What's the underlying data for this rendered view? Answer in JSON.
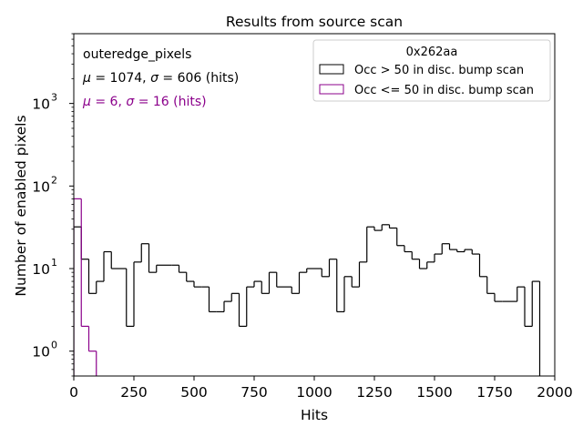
{
  "chart_data": {
    "type": "histogram",
    "title": "Results from source scan",
    "xlabel": "Hits",
    "ylabel": "Number of enabled pixels",
    "xlim": [
      0,
      2000
    ],
    "ylim": [
      0.5,
      7000
    ],
    "yscale": "log",
    "grid": false,
    "bin_width": 31.25,
    "x_ticks": [
      0,
      250,
      500,
      750,
      1000,
      1250,
      1500,
      1750,
      2000
    ],
    "x_tick_labels": [
      "0",
      "250",
      "500",
      "750",
      "1000",
      "1250",
      "1500",
      "1750",
      "2000"
    ],
    "y_ticks": [
      1,
      10,
      100,
      1000
    ],
    "y_tick_bases": [
      "10",
      "10",
      "10",
      "10"
    ],
    "y_tick_exponents": [
      "0",
      "1",
      "2",
      "3"
    ],
    "annotations": [
      {
        "text": "outeredge_pixels",
        "color": "#000000"
      },
      {
        "text_parts": [
          "μ",
          " = 1074, ",
          "σ",
          " = 606 (hits)"
        ],
        "color": "#000000"
      },
      {
        "text_parts": [
          "μ",
          " = 6, ",
          "σ",
          " = 16 (hits)"
        ],
        "color": "#8b008b"
      }
    ],
    "legend": {
      "title": "0x262aa",
      "position": "top-right",
      "entries": [
        "Occ > 50 in disc. bump scan",
        "Occ <= 50 in disc. bump scan"
      ]
    },
    "series": [
      {
        "name": "Occ > 50 in disc. bump scan",
        "color": "#000000",
        "values": [
          32,
          13,
          5,
          7,
          16,
          10,
          10,
          2,
          12,
          20,
          9,
          11,
          11,
          11,
          9,
          7,
          6,
          6,
          3,
          3,
          4,
          5,
          2,
          6,
          7,
          5,
          9,
          6,
          6,
          5,
          9,
          10,
          10,
          8,
          13,
          3,
          8,
          6,
          12,
          32,
          29,
          34,
          31,
          19,
          16,
          13,
          10,
          12,
          15,
          20,
          17,
          16,
          17,
          15,
          8,
          5,
          4,
          4,
          4,
          6,
          2,
          7,
          0,
          0
        ]
      },
      {
        "name": "Occ <= 50 in disc. bump scan",
        "color": "#8b008b",
        "values": [
          70,
          2,
          1,
          0
        ]
      }
    ]
  }
}
